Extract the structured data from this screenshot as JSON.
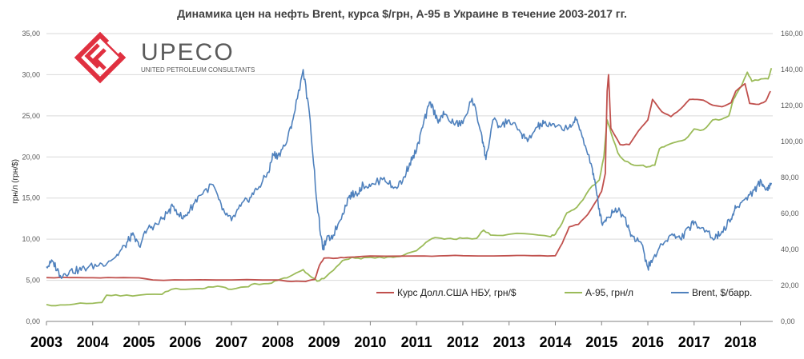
{
  "chart_data": {
    "type": "line",
    "title": "Динамика цен на нефть Brent, курса $/грн, А-95 в Украине в течение 2003-2017 гг.",
    "ylabel_left": "грн/л (грн/$)",
    "ylim_left": [
      0,
      35
    ],
    "ylim_right": [
      0,
      160
    ],
    "ticks_left": [
      "0,00",
      "5,00",
      "10,00",
      "15,00",
      "20,00",
      "25,00",
      "30,00",
      "35,00"
    ],
    "ticks_right": [
      "0,00",
      "20,00",
      "40,00",
      "60,00",
      "80,00",
      "100,00",
      "120,00",
      "140,00",
      "160,00"
    ],
    "xlim": [
      2003.0,
      2018.7
    ],
    "x_ticks": [
      "2003",
      "2004",
      "2005",
      "2006",
      "2007",
      "2008",
      "2009",
      "2010",
      "2011",
      "2012",
      "2013",
      "2014",
      "2015",
      "2016",
      "2017",
      "2018"
    ],
    "grid": true,
    "legend_position": "bottom-right",
    "series": [
      {
        "name": "Курс Долл.США НБУ, грн/$",
        "axis": "left",
        "color": "#c0504d",
        "points": [
          [
            2003.0,
            5.33
          ],
          [
            2003.5,
            5.33
          ],
          [
            2004.0,
            5.31
          ],
          [
            2004.5,
            5.31
          ],
          [
            2005.0,
            5.3
          ],
          [
            2005.3,
            5.05
          ],
          [
            2006.0,
            5.05
          ],
          [
            2007.0,
            5.05
          ],
          [
            2008.0,
            5.05
          ],
          [
            2008.3,
            4.85
          ],
          [
            2008.6,
            4.85
          ],
          [
            2008.8,
            5.1
          ],
          [
            2008.9,
            6.8
          ],
          [
            2009.0,
            7.7
          ],
          [
            2009.3,
            7.7
          ],
          [
            2009.5,
            7.8
          ],
          [
            2010.0,
            7.95
          ],
          [
            2011.0,
            7.95
          ],
          [
            2011.5,
            7.97
          ],
          [
            2012.0,
            7.99
          ],
          [
            2013.0,
            7.99
          ],
          [
            2013.5,
            7.99
          ],
          [
            2014.0,
            7.99
          ],
          [
            2014.15,
            9.5
          ],
          [
            2014.3,
            11.5
          ],
          [
            2014.5,
            11.8
          ],
          [
            2014.7,
            13.0
          ],
          [
            2014.9,
            14.8
          ],
          [
            2015.0,
            15.8
          ],
          [
            2015.08,
            18.0
          ],
          [
            2015.12,
            28.0
          ],
          [
            2015.15,
            30.0
          ],
          [
            2015.2,
            23.5
          ],
          [
            2015.4,
            21.5
          ],
          [
            2015.6,
            21.5
          ],
          [
            2015.8,
            23.2
          ],
          [
            2016.0,
            24.5
          ],
          [
            2016.1,
            27.0
          ],
          [
            2016.3,
            25.5
          ],
          [
            2016.5,
            24.9
          ],
          [
            2016.7,
            25.8
          ],
          [
            2016.9,
            27.0
          ],
          [
            2017.0,
            27.0
          ],
          [
            2017.2,
            26.9
          ],
          [
            2017.4,
            26.3
          ],
          [
            2017.6,
            26.1
          ],
          [
            2017.8,
            26.6
          ],
          [
            2017.9,
            28.0
          ],
          [
            2018.1,
            28.9
          ],
          [
            2018.2,
            26.5
          ],
          [
            2018.4,
            26.4
          ],
          [
            2018.55,
            26.8
          ],
          [
            2018.65,
            28.0
          ]
        ]
      },
      {
        "name": "А-95, грн/л",
        "axis": "left",
        "color": "#9bbb59",
        "points": [
          [
            2003.0,
            2.05
          ],
          [
            2003.3,
            2.0
          ],
          [
            2003.6,
            2.1
          ],
          [
            2004.0,
            2.2
          ],
          [
            2004.2,
            2.3
          ],
          [
            2004.3,
            3.2
          ],
          [
            2004.6,
            3.1
          ],
          [
            2005.0,
            3.2
          ],
          [
            2005.5,
            3.3
          ],
          [
            2005.7,
            3.9
          ],
          [
            2006.0,
            3.9
          ],
          [
            2006.3,
            4.0
          ],
          [
            2006.5,
            4.2
          ],
          [
            2006.8,
            4.2
          ],
          [
            2007.0,
            3.9
          ],
          [
            2007.3,
            4.2
          ],
          [
            2007.5,
            4.6
          ],
          [
            2007.8,
            4.6
          ],
          [
            2008.0,
            5.0
          ],
          [
            2008.2,
            5.3
          ],
          [
            2008.4,
            5.9
          ],
          [
            2008.55,
            6.3
          ],
          [
            2008.7,
            5.5
          ],
          [
            2008.85,
            4.9
          ],
          [
            2009.0,
            5.2
          ],
          [
            2009.2,
            6.2
          ],
          [
            2009.4,
            7.4
          ],
          [
            2009.6,
            7.8
          ],
          [
            2009.8,
            7.6
          ],
          [
            2010.0,
            7.8
          ],
          [
            2010.3,
            7.7
          ],
          [
            2010.5,
            7.8
          ],
          [
            2010.7,
            8.0
          ],
          [
            2011.0,
            8.6
          ],
          [
            2011.2,
            9.6
          ],
          [
            2011.4,
            10.2
          ],
          [
            2011.6,
            10.0
          ],
          [
            2011.8,
            10.0
          ],
          [
            2012.0,
            10.1
          ],
          [
            2012.3,
            10.1
          ],
          [
            2012.45,
            11.1
          ],
          [
            2012.6,
            10.5
          ],
          [
            2013.0,
            10.6
          ],
          [
            2013.5,
            10.6
          ],
          [
            2013.9,
            10.3
          ],
          [
            2014.0,
            10.6
          ],
          [
            2014.1,
            11.5
          ],
          [
            2014.25,
            13.2
          ],
          [
            2014.4,
            13.6
          ],
          [
            2014.6,
            14.8
          ],
          [
            2014.8,
            16.5
          ],
          [
            2014.95,
            17.2
          ],
          [
            2015.05,
            20.0
          ],
          [
            2015.12,
            24.5
          ],
          [
            2015.2,
            23.0
          ],
          [
            2015.35,
            20.5
          ],
          [
            2015.5,
            19.5
          ],
          [
            2015.7,
            19.0
          ],
          [
            2015.9,
            19.0
          ],
          [
            2016.0,
            18.8
          ],
          [
            2016.15,
            19.0
          ],
          [
            2016.25,
            21.0
          ],
          [
            2016.4,
            21.4
          ],
          [
            2016.6,
            21.8
          ],
          [
            2016.8,
            22.1
          ],
          [
            2017.0,
            23.4
          ],
          [
            2017.2,
            23.3
          ],
          [
            2017.4,
            24.5
          ],
          [
            2017.6,
            24.6
          ],
          [
            2017.75,
            25.0
          ],
          [
            2017.85,
            27.0
          ],
          [
            2017.95,
            28.0
          ],
          [
            2018.05,
            29.0
          ],
          [
            2018.15,
            30.3
          ],
          [
            2018.25,
            29.2
          ],
          [
            2018.45,
            29.5
          ],
          [
            2018.6,
            29.5
          ],
          [
            2018.67,
            30.8
          ]
        ]
      },
      {
        "name": "Brent, $/барр.",
        "axis": "right",
        "color": "#4f81bd",
        "points": [
          [
            2003.0,
            30.5
          ],
          [
            2003.15,
            33.0
          ],
          [
            2003.3,
            25.5
          ],
          [
            2003.5,
            28.0
          ],
          [
            2003.7,
            28.5
          ],
          [
            2003.9,
            30.0
          ],
          [
            2004.2,
            32.0
          ],
          [
            2004.5,
            36.0
          ],
          [
            2004.7,
            42.0
          ],
          [
            2004.85,
            48.0
          ],
          [
            2005.0,
            42.0
          ],
          [
            2005.2,
            52.0
          ],
          [
            2005.4,
            54.0
          ],
          [
            2005.6,
            60.0
          ],
          [
            2005.75,
            64.0
          ],
          [
            2005.95,
            57.0
          ],
          [
            2006.1,
            62.0
          ],
          [
            2006.3,
            70.0
          ],
          [
            2006.6,
            76.0
          ],
          [
            2006.8,
            62.0
          ],
          [
            2007.0,
            56.0
          ],
          [
            2007.2,
            64.0
          ],
          [
            2007.4,
            69.0
          ],
          [
            2007.6,
            75.0
          ],
          [
            2007.8,
            83.0
          ],
          [
            2007.9,
            93.0
          ],
          [
            2008.0,
            92.0
          ],
          [
            2008.2,
            100.0
          ],
          [
            2008.35,
            115.0
          ],
          [
            2008.55,
            140.0
          ],
          [
            2008.7,
            112.0
          ],
          [
            2008.85,
            65.0
          ],
          [
            2008.97,
            40.0
          ],
          [
            2009.05,
            45.0
          ],
          [
            2009.2,
            48.0
          ],
          [
            2009.4,
            60.0
          ],
          [
            2009.55,
            70.0
          ],
          [
            2009.7,
            71.0
          ],
          [
            2009.85,
            76.0
          ],
          [
            2010.0,
            75.0
          ],
          [
            2010.3,
            80.0
          ],
          [
            2010.5,
            74.0
          ],
          [
            2010.7,
            78.0
          ],
          [
            2010.85,
            88.0
          ],
          [
            2011.0,
            95.0
          ],
          [
            2011.15,
            110.0
          ],
          [
            2011.3,
            122.0
          ],
          [
            2011.45,
            112.0
          ],
          [
            2011.6,
            115.0
          ],
          [
            2011.8,
            110.0
          ],
          [
            2012.0,
            110.0
          ],
          [
            2012.2,
            124.0
          ],
          [
            2012.4,
            105.0
          ],
          [
            2012.5,
            90.0
          ],
          [
            2012.65,
            112.0
          ],
          [
            2012.8,
            108.0
          ],
          [
            2013.0,
            112.0
          ],
          [
            2013.25,
            105.0
          ],
          [
            2013.4,
            100.0
          ],
          [
            2013.6,
            108.0
          ],
          [
            2013.75,
            110.0
          ],
          [
            2014.0,
            108.0
          ],
          [
            2014.3,
            108.0
          ],
          [
            2014.45,
            112.0
          ],
          [
            2014.6,
            102.0
          ],
          [
            2014.8,
            85.0
          ],
          [
            2014.9,
            70.0
          ],
          [
            2015.0,
            55.0
          ],
          [
            2015.15,
            58.0
          ],
          [
            2015.3,
            63.0
          ],
          [
            2015.5,
            58.0
          ],
          [
            2015.65,
            48.0
          ],
          [
            2015.85,
            44.0
          ],
          [
            2016.0,
            30.0
          ],
          [
            2016.1,
            34.0
          ],
          [
            2016.3,
            43.0
          ],
          [
            2016.5,
            48.0
          ],
          [
            2016.7,
            46.0
          ],
          [
            2016.9,
            52.0
          ],
          [
            2017.0,
            55.0
          ],
          [
            2017.2,
            52.0
          ],
          [
            2017.45,
            46.0
          ],
          [
            2017.6,
            50.0
          ],
          [
            2017.8,
            57.0
          ],
          [
            2017.9,
            63.0
          ],
          [
            2018.1,
            68.0
          ],
          [
            2018.3,
            73.0
          ],
          [
            2018.45,
            78.0
          ],
          [
            2018.55,
            73.0
          ],
          [
            2018.67,
            77.0
          ]
        ]
      }
    ]
  },
  "logo": {
    "brand": "UPECO",
    "subtitle": "UNITED PETROLEUM CONSULTANTS",
    "color": "#e03040"
  },
  "colors": {
    "grid": "#d9d9d9",
    "axis": "#808080"
  }
}
